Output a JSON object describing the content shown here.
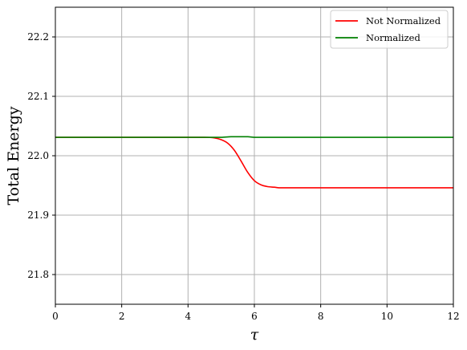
{
  "chart_data": {
    "type": "line",
    "xlabel": "τ",
    "ylabel": "Total Energy",
    "xlim": [
      0,
      12
    ],
    "ylim": [
      21.75,
      22.25
    ],
    "xticks": [
      0,
      2,
      4,
      6,
      8,
      10,
      12
    ],
    "yticks": [
      21.8,
      21.9,
      22.0,
      22.1,
      22.2
    ],
    "xtick_labels": [
      "0",
      "2",
      "4",
      "6",
      "8",
      "10",
      "12"
    ],
    "ytick_labels": [
      "21.8",
      "21.9",
      "22.0",
      "22.1",
      "22.2"
    ],
    "grid": true,
    "legend_position": "top-right",
    "series": [
      {
        "name": "Not Normalized",
        "color": "#ff0000",
        "x": [
          0,
          1,
          2,
          3,
          4,
          4.5,
          4.8,
          5.0,
          5.2,
          5.4,
          5.6,
          5.8,
          6.0,
          6.2,
          6.4,
          6.6,
          6.8,
          7.0,
          8,
          9,
          10,
          11,
          12
        ],
        "y": [
          22.031,
          22.031,
          22.031,
          22.031,
          22.031,
          22.031,
          22.03,
          22.027,
          22.021,
          22.009,
          21.991,
          21.972,
          21.958,
          21.951,
          21.948,
          21.947,
          21.946,
          21.946,
          21.946,
          21.946,
          21.946,
          21.946,
          21.946
        ]
      },
      {
        "name": "Normalized",
        "color": "#008000",
        "x": [
          0,
          1,
          2,
          3,
          4,
          4.5,
          5.0,
          5.3,
          5.5,
          5.8,
          6.0,
          6.5,
          7,
          8,
          9,
          10,
          11,
          12
        ],
        "y": [
          22.031,
          22.031,
          22.031,
          22.031,
          22.031,
          22.031,
          22.031,
          22.032,
          22.032,
          22.032,
          22.031,
          22.031,
          22.031,
          22.031,
          22.031,
          22.031,
          22.031,
          22.031
        ]
      }
    ]
  }
}
